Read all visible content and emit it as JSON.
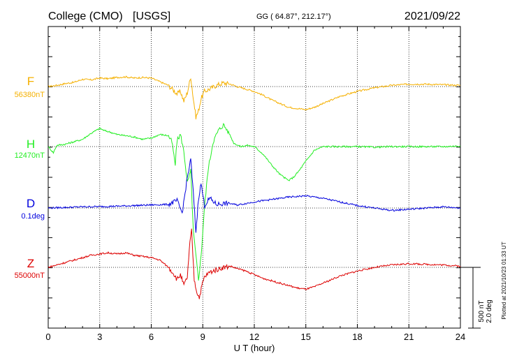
{
  "header": {
    "station": "College (CMO)",
    "source": "[USGS]",
    "coords": "GG ( 64.87°, 212.17°)",
    "date": "2021/09/22"
  },
  "plotted_note": "Plotted at 2021/10/23 01:33 UT",
  "scale_bar": {
    "line1": "500 nT",
    "line2": "2.0 deg"
  },
  "chart_data": {
    "type": "line",
    "xlabel": "U T (hour)",
    "xlim": [
      0,
      24
    ],
    "xticks": [
      "0",
      "3",
      "6",
      "9",
      "12",
      "15",
      "18",
      "21",
      "24"
    ],
    "grid": true,
    "series": [
      {
        "name": "F",
        "baseline_label": "56380nT",
        "color": "#f5b000",
        "x": [
          0,
          0.5,
          1,
          1.5,
          2,
          2.5,
          3,
          3.5,
          4,
          4.5,
          5,
          5.5,
          6,
          6.5,
          7,
          7.3,
          7.5,
          7.7,
          7.9,
          8.1,
          8.3,
          8.45,
          8.6,
          8.75,
          8.9,
          9.1,
          9.4,
          9.8,
          10.2,
          10.6,
          11,
          11.5,
          12,
          12.5,
          13,
          13.5,
          14,
          14.5,
          15,
          15.5,
          16,
          16.5,
          17,
          18,
          19,
          20,
          21,
          22,
          23,
          24
        ],
        "values": [
          0,
          10,
          25,
          35,
          60,
          55,
          70,
          65,
          75,
          80,
          70,
          75,
          70,
          40,
          10,
          -30,
          -60,
          -40,
          -120,
          -50,
          80,
          -100,
          -250,
          -200,
          -100,
          -40,
          -20,
          10,
          30,
          20,
          0,
          -20,
          -40,
          -70,
          -110,
          -140,
          -170,
          -180,
          -190,
          -170,
          -140,
          -110,
          -80,
          -40,
          -10,
          10,
          20,
          20,
          15,
          10
        ]
      },
      {
        "name": "H",
        "baseline_label": "12470nT",
        "color": "#22ee22",
        "x": [
          0,
          0.3,
          0.5,
          1,
          1.5,
          2,
          2.5,
          3,
          3.3,
          3.6,
          4,
          4.5,
          5,
          5.5,
          6,
          6.5,
          7,
          7.2,
          7.4,
          7.5,
          7.7,
          7.9,
          8.1,
          8.3,
          8.45,
          8.6,
          8.75,
          8.9,
          9.1,
          9.3,
          9.6,
          9.9,
          10.2,
          10.5,
          10.8,
          11.2,
          11.6,
          12,
          12.5,
          13,
          13.5,
          14,
          14.3,
          14.6,
          15,
          15.5,
          16,
          17,
          18,
          19,
          20,
          21,
          22,
          23,
          24
        ],
        "values": [
          0,
          -50,
          10,
          20,
          40,
          60,
          110,
          150,
          130,
          120,
          100,
          90,
          80,
          60,
          70,
          100,
          90,
          40,
          -150,
          50,
          100,
          -40,
          -300,
          -200,
          -700,
          -900,
          -1100,
          -900,
          -500,
          -200,
          40,
          130,
          180,
          120,
          30,
          0,
          10,
          0,
          -60,
          -150,
          -230,
          -280,
          -250,
          -200,
          -120,
          -30,
          0,
          0,
          0,
          -5,
          0,
          0,
          0,
          0,
          5
        ]
      },
      {
        "name": "D",
        "baseline_label": "0.1deg",
        "color": "#0000dd",
        "x": [
          0,
          1,
          2,
          3,
          4,
          5,
          6,
          7,
          7.5,
          7.8,
          8.1,
          8.3,
          8.45,
          8.6,
          8.75,
          8.9,
          9.1,
          9.4,
          9.8,
          10.5,
          11,
          12,
          13,
          14,
          15,
          16,
          17,
          18,
          19,
          20,
          21,
          22,
          23,
          24
        ],
        "values": [
          0,
          5,
          10,
          12,
          15,
          20,
          25,
          30,
          60,
          -40,
          250,
          400,
          120,
          -200,
          80,
          200,
          20,
          80,
          30,
          40,
          25,
          50,
          70,
          90,
          100,
          80,
          50,
          20,
          0,
          -20,
          -10,
          0,
          10,
          0
        ]
      },
      {
        "name": "Z",
        "baseline_label": "55000nT",
        "color": "#dd0000",
        "x": [
          0,
          0.5,
          1,
          1.5,
          2,
          2.5,
          3,
          3.5,
          4,
          4.5,
          5,
          5.5,
          6,
          6.5,
          7,
          7.3,
          7.5,
          7.7,
          7.9,
          8.1,
          8.25,
          8.35,
          8.5,
          8.65,
          8.8,
          8.95,
          9.1,
          9.4,
          9.8,
          10.2,
          10.6,
          11,
          11.5,
          12,
          12.5,
          13,
          13.5,
          14,
          14.5,
          15,
          15.5,
          16,
          16.5,
          17,
          18,
          19,
          20,
          21,
          22,
          23,
          24
        ],
        "values": [
          0,
          20,
          40,
          60,
          80,
          100,
          110,
          120,
          110,
          120,
          100,
          90,
          80,
          60,
          0,
          -50,
          -100,
          -60,
          -150,
          -80,
          200,
          300,
          -100,
          -200,
          -250,
          -150,
          -80,
          -40,
          -20,
          0,
          10,
          -10,
          -30,
          -60,
          -90,
          -110,
          -130,
          -150,
          -170,
          -180,
          -160,
          -130,
          -100,
          -70,
          -30,
          0,
          20,
          30,
          25,
          20,
          10
        ]
      }
    ]
  }
}
